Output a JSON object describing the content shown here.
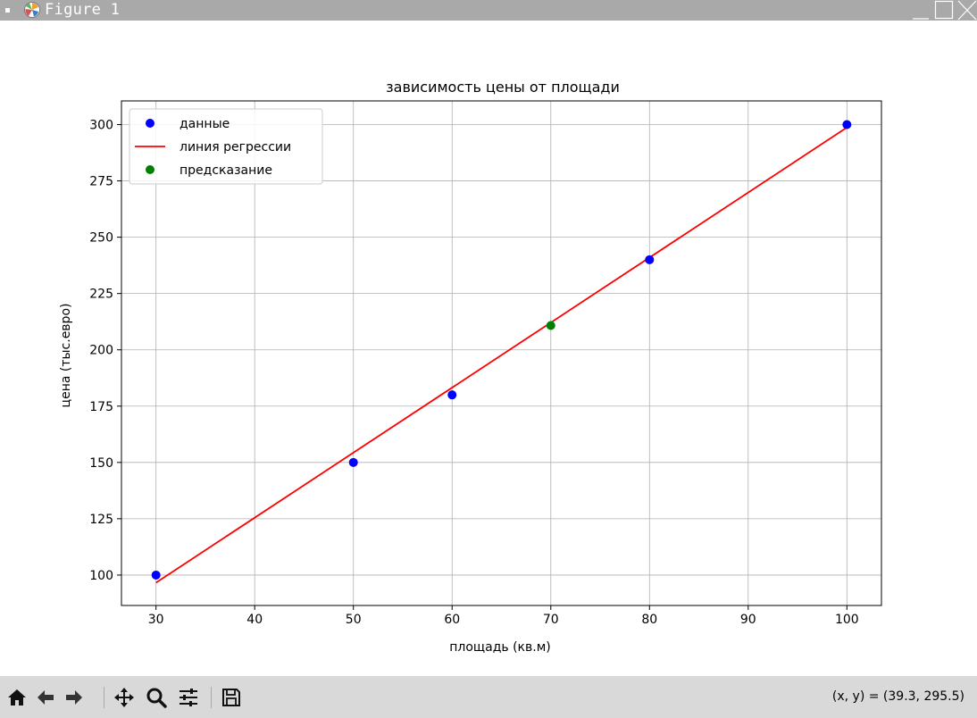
{
  "window": {
    "title": "Figure 1"
  },
  "toolbar": {
    "tools": [
      {
        "name": "home-icon"
      },
      {
        "name": "back-icon"
      },
      {
        "name": "forward-icon"
      },
      {
        "name": "pan-icon"
      },
      {
        "name": "zoom-icon"
      },
      {
        "name": "configure-subplots-icon"
      },
      {
        "name": "save-icon"
      }
    ],
    "coords": "(x, y) = (39.3, 295.5)"
  },
  "chart_data": {
    "type": "scatter",
    "title": "зависимость цены от площади",
    "xlabel": "площадь (кв.м)",
    "ylabel": "цена (тыс.евро)",
    "xlim": [
      26.5,
      103.5
    ],
    "ylim": [
      86.5,
      310.5
    ],
    "xticks": [
      30,
      40,
      50,
      60,
      70,
      80,
      90,
      100
    ],
    "yticks": [
      100,
      125,
      150,
      175,
      200,
      225,
      250,
      275,
      300
    ],
    "grid": true,
    "legend_position": "upper-left",
    "series": [
      {
        "name": "данные",
        "kind": "scatter",
        "color": "#0000ff",
        "x": [
          30,
          50,
          60,
          80,
          100
        ],
        "y": [
          100,
          150,
          180,
          240,
          300
        ]
      },
      {
        "name": "линия регрессии",
        "kind": "line",
        "color": "#ff0000",
        "x": [
          30,
          100
        ],
        "y": [
          96.6,
          298.7
        ]
      },
      {
        "name": "предсказание",
        "kind": "scatter",
        "color": "#008000",
        "x": [
          70
        ],
        "y": [
          210.8
        ]
      }
    ]
  }
}
